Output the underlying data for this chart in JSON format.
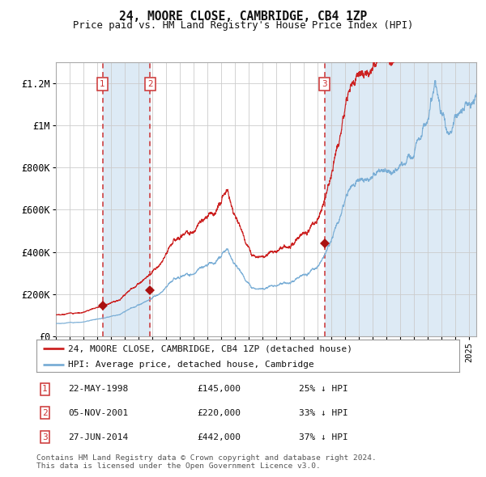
{
  "title": "24, MOORE CLOSE, CAMBRIDGE, CB4 1ZP",
  "subtitle": "Price paid vs. HM Land Registry's House Price Index (HPI)",
  "ylim": [
    0,
    1300000
  ],
  "xlim_start": 1995.0,
  "xlim_end": 2025.5,
  "background_color": "#ffffff",
  "plot_bg_color": "#ffffff",
  "grid_color": "#cccccc",
  "hpi_line_color": "#7aaed6",
  "price_line_color": "#cc2222",
  "sale_marker_color": "#aa1111",
  "dashed_line_color": "#cc3333",
  "shade_color": "#ddeaf5",
  "legend_label_price": "24, MOORE CLOSE, CAMBRIDGE, CB4 1ZP (detached house)",
  "legend_label_hpi": "HPI: Average price, detached house, Cambridge",
  "sales": [
    {
      "num": 1,
      "date_num": 1998.38,
      "price": 145000,
      "date_str": "22-MAY-1998",
      "pct": "25%",
      "dir": "↓"
    },
    {
      "num": 2,
      "date_num": 2001.84,
      "price": 220000,
      "date_str": "05-NOV-2001",
      "pct": "33%",
      "dir": "↓"
    },
    {
      "num": 3,
      "date_num": 2014.49,
      "price": 442000,
      "date_str": "27-JUN-2014",
      "pct": "37%",
      "dir": "↓"
    }
  ],
  "footnote1": "Contains HM Land Registry data © Crown copyright and database right 2024.",
  "footnote2": "This data is licensed under the Open Government Licence v3.0.",
  "yticks": [
    0,
    200000,
    400000,
    600000,
    800000,
    1000000,
    1200000
  ],
  "ytick_labels": [
    "£0",
    "£200K",
    "£400K",
    "£600K",
    "£800K",
    "£1M",
    "£1.2M"
  ]
}
